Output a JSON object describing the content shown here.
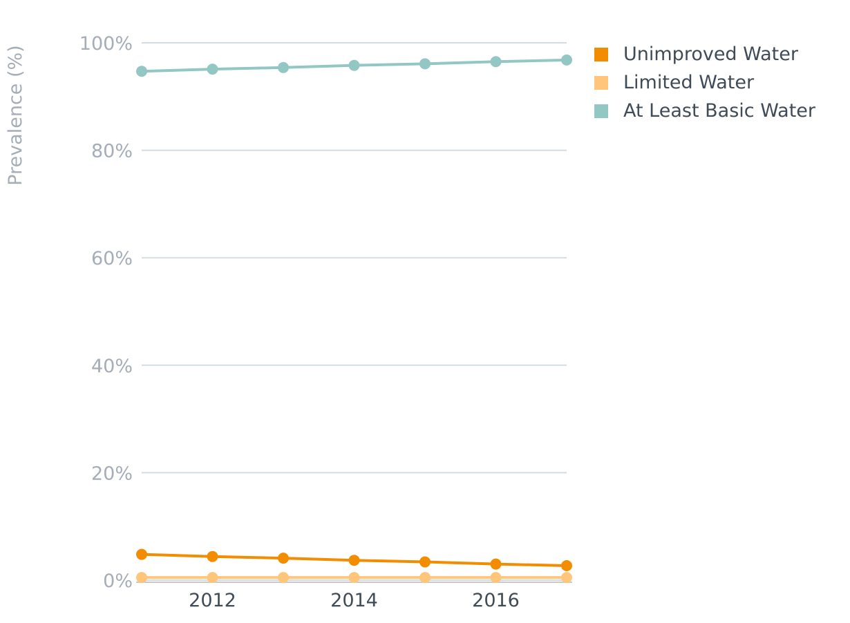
{
  "chart_data": {
    "type": "line",
    "x": [
      2011,
      2012,
      2013,
      2014,
      2015,
      2016,
      2017
    ],
    "xticks": [
      "2012",
      "2014",
      "2016"
    ],
    "xtick_values": [
      2012,
      2014,
      2016
    ],
    "xlim": [
      2011,
      2017
    ],
    "ylabel": "Prevalence (%)",
    "ylim": [
      0,
      100
    ],
    "yticks": [
      "0%",
      "20%",
      "40%",
      "60%",
      "80%",
      "100%"
    ],
    "ytick_values": [
      0,
      20,
      40,
      60,
      80,
      100
    ],
    "grid": true,
    "legend_position": "top-right",
    "series": [
      {
        "name": "Unimproved Water",
        "color": "#f28c00",
        "values": [
          4.8,
          4.4,
          4.1,
          3.7,
          3.4,
          3.0,
          2.7
        ]
      },
      {
        "name": "Limited Water",
        "color": "#fec67a",
        "values": [
          0.5,
          0.5,
          0.5,
          0.5,
          0.5,
          0.5,
          0.5
        ]
      },
      {
        "name": "At Least Basic Water",
        "color": "#92c7c4",
        "values": [
          94.7,
          95.1,
          95.4,
          95.8,
          96.1,
          96.5,
          96.8
        ]
      }
    ]
  }
}
